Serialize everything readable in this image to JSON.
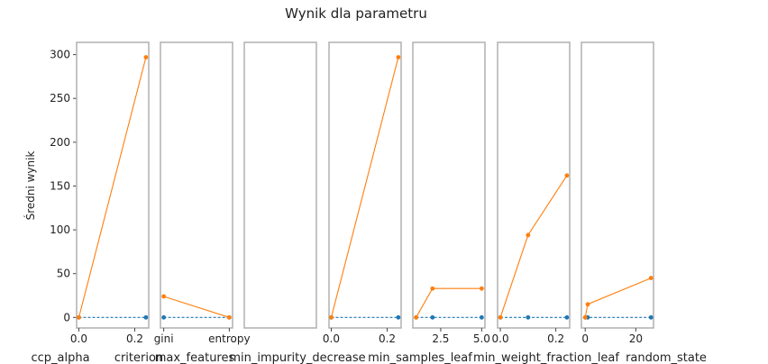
{
  "figure": {
    "title": "Wynik dla parametru",
    "ylabel": "Średni wynik",
    "y_ticks": [
      "0",
      "50",
      "100",
      "150",
      "200",
      "250",
      "300"
    ]
  },
  "colors": {
    "series_1": "#1f77b4",
    "series_2": "#ff7f0e",
    "frame": "#b0b0b0"
  },
  "chart_data": {
    "type": "line",
    "title": "Wynik dla parametru",
    "ylabel": "Średni wynik",
    "ylim": [
      -12,
      314
    ],
    "shared_y": true,
    "panels": [
      {
        "xlabel": "ccp_alpha",
        "x_ticks": [
          "0.0",
          "0.2"
        ],
        "xlim": [
          -0.008,
          0.25
        ],
        "x": [
          0.0,
          0.24
        ],
        "series": [
          {
            "color": "#1f77b4",
            "style": "dashed",
            "values": [
              0,
              0
            ]
          },
          {
            "color": "#ff7f0e",
            "style": "solid",
            "values": [
              0,
              297
            ]
          }
        ]
      },
      {
        "xlabel": "criterion",
        "x_ticks": [
          "gini",
          "entropy"
        ],
        "xlim": [
          -0.05,
          1.05
        ],
        "x": [
          0,
          1
        ],
        "series": [
          {
            "color": "#1f77b4",
            "style": "dashed",
            "values": [
              0,
              0
            ]
          },
          {
            "color": "#ff7f0e",
            "style": "solid",
            "values": [
              24,
              0
            ]
          }
        ]
      },
      {
        "xlabel": "max_features",
        "x_ticks": [],
        "xlim": [
          0,
          1
        ],
        "x": [],
        "series": []
      },
      {
        "xlabel": "min_impurity_decrease",
        "x_ticks": [
          "0.0",
          "0.2"
        ],
        "xlim": [
          -0.008,
          0.25
        ],
        "x": [
          0.0,
          0.24
        ],
        "series": [
          {
            "color": "#1f77b4",
            "style": "dashed",
            "values": [
              0,
              0
            ]
          },
          {
            "color": "#ff7f0e",
            "style": "solid",
            "values": [
              0,
              297
            ]
          }
        ]
      },
      {
        "xlabel": "min_samples_leaf",
        "x_ticks": [
          "2.5",
          "5.0"
        ],
        "xlim": [
          0.8,
          5.2
        ],
        "x": [
          1,
          2,
          5
        ],
        "series": [
          {
            "color": "#1f77b4",
            "style": "dashed",
            "values": [
              0,
              0,
              0
            ]
          },
          {
            "color": "#ff7f0e",
            "style": "solid",
            "values": [
              0,
              33,
              33
            ]
          }
        ]
      },
      {
        "xlabel": "min_weight_fraction_leaf",
        "x_ticks": [
          "0.0",
          "0.2"
        ],
        "xlim": [
          -0.01,
          0.25
        ],
        "x": [
          0.0,
          0.1,
          0.24
        ],
        "series": [
          {
            "color": "#1f77b4",
            "style": "dashed",
            "values": [
              0,
              0,
              0
            ]
          },
          {
            "color": "#ff7f0e",
            "style": "solid",
            "values": [
              0,
              94,
              162
            ]
          }
        ]
      },
      {
        "xlabel": "random_state",
        "x_ticks": [
          "0",
          "20"
        ],
        "xlim": [
          -1.5,
          27
        ],
        "x": [
          0,
          1,
          26
        ],
        "series": [
          {
            "color": "#1f77b4",
            "style": "dashed",
            "values": [
              0,
              0,
              0
            ]
          },
          {
            "color": "#ff7f0e",
            "style": "solid",
            "values": [
              0,
              15,
              45
            ]
          }
        ]
      }
    ]
  }
}
